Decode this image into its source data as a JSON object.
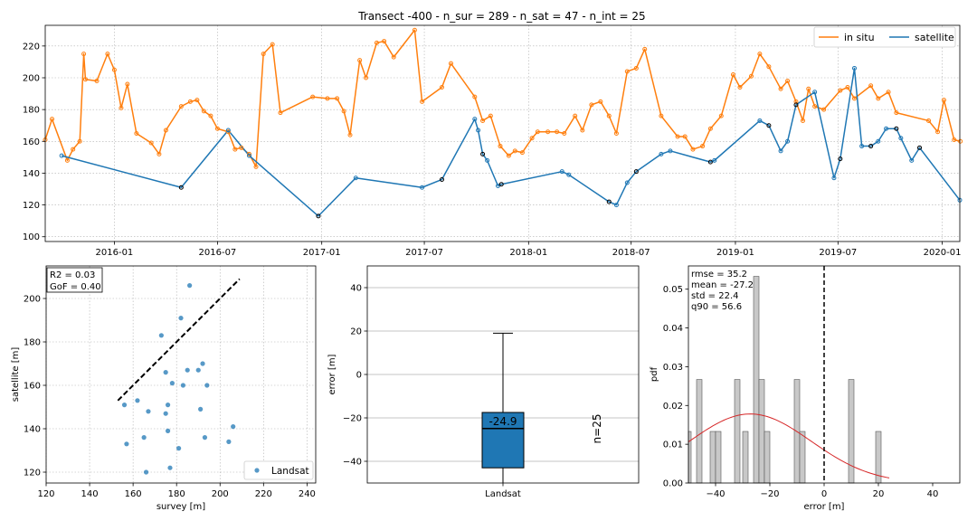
{
  "title": "Transect -400 - n_sur = 289 - n_sat = 47 - n_int = 25",
  "colors": {
    "insitu": "#ff7f0e",
    "satellite": "#1f77b4",
    "box": "#1f77b4",
    "curve": "#d62728",
    "hist": "#c8c8c8"
  },
  "chart_data": [
    {
      "type": "line",
      "title": "Transect -400 - n_sur = 289 - n_sat = 47 - n_int = 25",
      "x_axis": "date",
      "xlim": [
        "2015-09-01",
        "2020-02-01"
      ],
      "ylim": [
        97,
        233
      ],
      "xticks": [
        "2016-01",
        "2016-07",
        "2017-01",
        "2017-07",
        "2018-01",
        "2018-07",
        "2019-01",
        "2019-07",
        "2020-01"
      ],
      "yticks": [
        100,
        120,
        140,
        160,
        180,
        200,
        220
      ],
      "grid": true,
      "legend": {
        "position": "top-right",
        "entries": [
          "in situ",
          "satellite"
        ]
      },
      "series": [
        {
          "name": "in situ",
          "color": "#ff7f0e",
          "points": [
            [
              "2015-09-01",
              161
            ],
            [
              "2015-09-13",
              174
            ],
            [
              "2015-10-10",
              148
            ],
            [
              "2015-10-20",
              155
            ],
            [
              "2015-11-01",
              160
            ],
            [
              "2015-11-08",
              215
            ],
            [
              "2015-11-11",
              199
            ],
            [
              "2015-12-01",
              198
            ],
            [
              "2015-12-20",
              215
            ],
            [
              "2016-01-01",
              205
            ],
            [
              "2016-01-13",
              181
            ],
            [
              "2016-01-24",
              196
            ],
            [
              "2016-02-09",
              165
            ],
            [
              "2016-03-06",
              159
            ],
            [
              "2016-03-20",
              152
            ],
            [
              "2016-04-01",
              167
            ],
            [
              "2016-04-28",
              182
            ],
            [
              "2016-05-14",
              185
            ],
            [
              "2016-05-26",
              186
            ],
            [
              "2016-06-07",
              179
            ],
            [
              "2016-06-19",
              176
            ],
            [
              "2016-07-01",
              168
            ],
            [
              "2016-07-20",
              166
            ],
            [
              "2016-08-01",
              155
            ],
            [
              "2016-08-12",
              156
            ],
            [
              "2016-08-26",
              152
            ],
            [
              "2016-09-07",
              144
            ],
            [
              "2016-09-20",
              215
            ],
            [
              "2016-10-06",
              221
            ],
            [
              "2016-10-20",
              178
            ],
            [
              "2016-12-16",
              188
            ],
            [
              "2017-01-11",
              187
            ],
            [
              "2017-01-28",
              187
            ],
            [
              "2017-02-09",
              179
            ],
            [
              "2017-02-20",
              164
            ],
            [
              "2017-03-09",
              211
            ],
            [
              "2017-03-20",
              200
            ],
            [
              "2017-04-08",
              222
            ],
            [
              "2017-04-21",
              223
            ],
            [
              "2017-05-08",
              213
            ],
            [
              "2017-06-14",
              230
            ],
            [
              "2017-06-27",
              185
            ],
            [
              "2017-08-01",
              194
            ],
            [
              "2017-08-17",
              209
            ],
            [
              "2017-09-28",
              188
            ],
            [
              "2017-10-12",
              173
            ],
            [
              "2017-10-26",
              176
            ],
            [
              "2017-11-12",
              157
            ],
            [
              "2017-11-27",
              151
            ],
            [
              "2017-12-08",
              154
            ],
            [
              "2017-12-21",
              153
            ],
            [
              "2018-01-07",
              162
            ],
            [
              "2018-01-17",
              166
            ],
            [
              "2018-02-04",
              166
            ],
            [
              "2018-02-20",
              166
            ],
            [
              "2018-03-05",
              165
            ],
            [
              "2018-03-24",
              176
            ],
            [
              "2018-04-06",
              167
            ],
            [
              "2018-04-22",
              183
            ],
            [
              "2018-05-08",
              185
            ],
            [
              "2018-05-23",
              176
            ],
            [
              "2018-06-05",
              165
            ],
            [
              "2018-06-24",
              204
            ],
            [
              "2018-07-10",
              206
            ],
            [
              "2018-07-25",
              218
            ],
            [
              "2018-08-23",
              176
            ],
            [
              "2018-09-21",
              163
            ],
            [
              "2018-10-04",
              163
            ],
            [
              "2018-10-18",
              155
            ],
            [
              "2018-11-04",
              157
            ],
            [
              "2018-11-18",
              168
            ],
            [
              "2018-12-07",
              176
            ],
            [
              "2018-12-28",
              202
            ],
            [
              "2019-01-09",
              194
            ],
            [
              "2019-01-29",
              201
            ],
            [
              "2019-02-13",
              215
            ],
            [
              "2019-03-01",
              207
            ],
            [
              "2019-03-22",
              193
            ],
            [
              "2019-04-03",
              198
            ],
            [
              "2019-04-18",
              185
            ],
            [
              "2019-04-30",
              173
            ],
            [
              "2019-05-10",
              193
            ],
            [
              "2019-05-21",
              182
            ],
            [
              "2019-06-06",
              180
            ],
            [
              "2019-07-05",
              192
            ],
            [
              "2019-07-18",
              194
            ],
            [
              "2019-07-30",
              187
            ],
            [
              "2019-08-28",
              195
            ],
            [
              "2019-09-10",
              187
            ],
            [
              "2019-09-28",
              191
            ],
            [
              "2019-10-12",
              178
            ],
            [
              "2019-12-08",
              173
            ],
            [
              "2019-12-24",
              166
            ],
            [
              "2020-01-04",
              186
            ],
            [
              "2020-01-22",
              161
            ],
            [
              "2020-02-02",
              160
            ]
          ]
        },
        {
          "name": "satellite",
          "color": "#1f77b4",
          "points": [
            [
              "2015-09-30",
              151
            ],
            [
              "2016-04-28",
              131
            ],
            [
              "2016-07-20",
              167
            ],
            [
              "2016-08-26",
              151
            ],
            [
              "2016-12-26",
              113
            ],
            [
              "2017-03-02",
              137
            ],
            [
              "2017-06-27",
              131
            ],
            [
              "2017-08-01",
              136
            ],
            [
              "2017-09-28",
              174
            ],
            [
              "2017-10-04",
              167
            ],
            [
              "2017-10-12",
              152
            ],
            [
              "2017-10-20",
              148
            ],
            [
              "2017-11-08",
              132
            ],
            [
              "2017-11-14",
              133
            ],
            [
              "2018-03-01",
              141
            ],
            [
              "2018-03-13",
              139
            ],
            [
              "2018-05-23",
              122
            ],
            [
              "2018-06-05",
              120
            ],
            [
              "2018-06-24",
              134
            ],
            [
              "2018-07-10",
              141
            ],
            [
              "2018-08-23",
              152
            ],
            [
              "2018-09-08",
              154
            ],
            [
              "2018-11-18",
              147
            ],
            [
              "2018-11-25",
              148
            ],
            [
              "2019-02-13",
              173
            ],
            [
              "2019-03-01",
              170
            ],
            [
              "2019-03-22",
              154
            ],
            [
              "2019-04-03",
              160
            ],
            [
              "2019-04-18",
              183
            ],
            [
              "2019-05-21",
              191
            ],
            [
              "2019-06-24",
              137
            ],
            [
              "2019-07-05",
              149
            ],
            [
              "2019-07-30",
              206
            ],
            [
              "2019-08-12",
              157
            ],
            [
              "2019-08-28",
              157
            ],
            [
              "2019-09-10",
              160
            ],
            [
              "2019-09-24",
              168
            ],
            [
              "2019-10-12",
              168
            ],
            [
              "2019-10-20",
              162
            ],
            [
              "2019-11-08",
              148
            ],
            [
              "2019-11-22",
              156
            ],
            [
              "2020-02-01",
              123
            ]
          ]
        }
      ]
    },
    {
      "type": "scatter",
      "xlabel": "survey [m]",
      "ylabel": "satellite [m]",
      "xlim": [
        120,
        244
      ],
      "ylim": [
        115,
        215
      ],
      "xticks": [
        120,
        140,
        160,
        180,
        200,
        220,
        240
      ],
      "yticks": [
        120,
        140,
        160,
        180,
        200
      ],
      "grid": true,
      "annotation": [
        "R2 = 0.03",
        "GoF = 0.40"
      ],
      "legend": {
        "position": "bottom-right",
        "entries": [
          "Landsat"
        ]
      },
      "identity_line": [
        [
          153,
          153
        ],
        [
          209,
          209
        ]
      ],
      "series": [
        {
          "name": "Landsat",
          "points": [
            [
              156,
              151
            ],
            [
              157,
              133
            ],
            [
              162,
              153
            ],
            [
              165,
              136
            ],
            [
              166,
              120
            ],
            [
              167,
              148
            ],
            [
              173,
              183
            ],
            [
              175,
              166
            ],
            [
              175,
              147
            ],
            [
              176,
              151
            ],
            [
              176,
              139
            ],
            [
              177,
              122
            ],
            [
              178,
              161
            ],
            [
              181,
              131
            ],
            [
              182,
              191
            ],
            [
              183,
              160
            ],
            [
              185,
              167
            ],
            [
              186,
              206
            ],
            [
              190,
              167
            ],
            [
              191,
              149
            ],
            [
              192,
              170
            ],
            [
              193,
              136
            ],
            [
              194,
              160
            ],
            [
              204,
              134
            ],
            [
              206,
              141
            ]
          ]
        }
      ]
    },
    {
      "type": "box",
      "xlabel": "",
      "ylabel": "error [m]",
      "ylim": [
        -50,
        50
      ],
      "yticks": [
        -40,
        -20,
        0,
        20,
        40
      ],
      "categories": [
        "Landsat"
      ],
      "median_label": "-24.9",
      "n_label": "n=25",
      "box": {
        "median": -24.9,
        "q1": -43,
        "q3": -17.5,
        "whisker_low": -50,
        "whisker_high": 19
      }
    },
    {
      "type": "histogram",
      "xlabel": "error [m]",
      "ylabel": "pdf",
      "xlim": [
        -50,
        50
      ],
      "ylim": [
        0,
        0.056
      ],
      "xticks": [
        -40,
        -20,
        0,
        20,
        40
      ],
      "yticks": [
        0.0,
        0.01,
        0.02,
        0.03,
        0.04,
        0.05
      ],
      "annotation": [
        "rmse = 35.2",
        "mean = -27.2",
        "std = 22.4",
        "q90 = 56.6"
      ],
      "reference_line": 0,
      "bins": [
        [
          -51,
          -49,
          0.0133
        ],
        [
          -47,
          -45,
          0.0267
        ],
        [
          -42,
          -40,
          0.0133
        ],
        [
          -40,
          -38,
          0.0133
        ],
        [
          -33,
          -31,
          0.0267
        ],
        [
          -30,
          -28,
          0.0133
        ],
        [
          -26,
          -24,
          0.0533
        ],
        [
          -24,
          -22,
          0.0267
        ],
        [
          -22,
          -20,
          0.0133
        ],
        [
          -11,
          -9,
          0.0267
        ],
        [
          -9,
          -7,
          0.0133
        ],
        [
          9,
          11,
          0.0267
        ],
        [
          19,
          21,
          0.0133
        ]
      ],
      "normal_curve": {
        "mean": -27.2,
        "std": 22.4,
        "x_range": [
          -50,
          24
        ]
      }
    }
  ]
}
